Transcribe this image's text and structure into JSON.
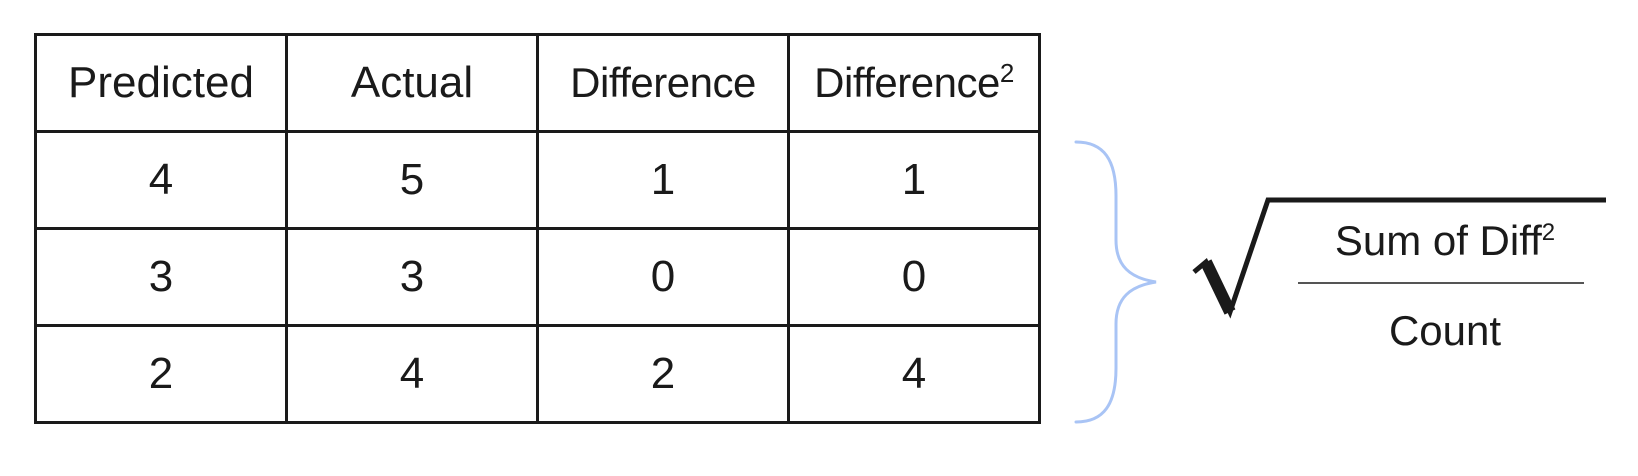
{
  "table": {
    "headers": [
      {
        "text": "Predicted",
        "sup": ""
      },
      {
        "text": "Actual",
        "sup": ""
      },
      {
        "text": "Difference",
        "sup": ""
      },
      {
        "text": "Difference",
        "sup": "2"
      }
    ],
    "rows": [
      [
        "4",
        "5",
        "1",
        "1"
      ],
      [
        "3",
        "3",
        "0",
        "0"
      ],
      [
        "2",
        "4",
        "2",
        "4"
      ]
    ]
  },
  "formula": {
    "numerator": "Sum of Diff",
    "numerator_sup": "2",
    "denominator": "Count"
  },
  "colors": {
    "brace": "#a9c4f5",
    "text": "#1a1a1a",
    "fraction_bar": "#555555"
  },
  "icons": {
    "brace": "right-curly-brace-icon",
    "radical": "square-root-icon"
  }
}
